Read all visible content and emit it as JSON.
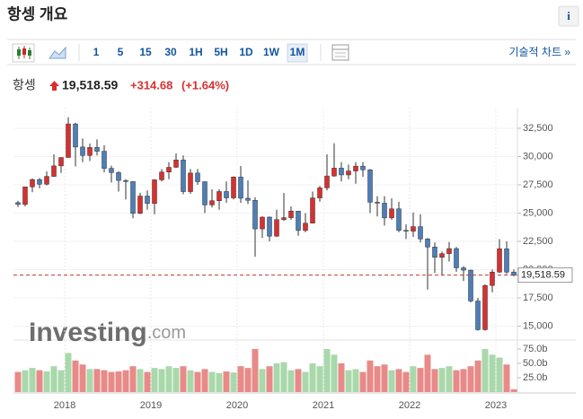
{
  "header": {
    "title": "항셍 개요",
    "info": "i",
    "tools": [
      "1",
      "5",
      "15",
      "30",
      "1H",
      "5H",
      "1D",
      "1W",
      "1M"
    ],
    "selected_tool": "1M",
    "tech_chart": "기술적 차트 »",
    "name": "항셍",
    "price": "19,518.59",
    "change": "+314.68",
    "change_pct": "(+1.64%)"
  },
  "chart_data": {
    "type": "candlestick",
    "categories": [
      null,
      null,
      null,
      null,
      null,
      null,
      null,
      "2018",
      null,
      null,
      null,
      null,
      null,
      null,
      null,
      null,
      null,
      null,
      null,
      "2019",
      null,
      null,
      null,
      null,
      null,
      null,
      null,
      null,
      null,
      null,
      null,
      "2020",
      null,
      null,
      null,
      null,
      null,
      null,
      null,
      null,
      null,
      null,
      null,
      "2021",
      null,
      null,
      null,
      null,
      null,
      null,
      null,
      null,
      null,
      null,
      null,
      "2022",
      null,
      null,
      null,
      null,
      null,
      null,
      null,
      null,
      null,
      null,
      null,
      "2023",
      null,
      null
    ],
    "open": [
      25925,
      25765,
      27323,
      27970,
      27554,
      28246,
      29177,
      29919,
      32887,
      30845,
      30093,
      30808,
      30469,
      28955,
      28583,
      27889,
      27789,
      24980,
      26507,
      25846,
      27942,
      28633,
      29051,
      29699,
      26901,
      28543,
      27778,
      25725,
      26092,
      26907,
      26346,
      28190,
      26313,
      26130,
      23603,
      24644,
      22961,
      24427,
      24595,
      25177,
      23459,
      24107,
      26341,
      27231,
      28284,
      28980,
      28378,
      28725,
      29152,
      28828,
      25961,
      25879,
      24576,
      25377,
      23475,
      23398,
      23802,
      22713,
      21997,
      21089,
      21415,
      21860,
      20157,
      19954,
      17223,
      14687,
      18597,
      19781,
      21842,
      19786
    ],
    "high": [
      26090,
      27325,
      28060,
      28100,
      28680,
      30200,
      29920,
      33484,
      33000,
      31600,
      31150,
      31520,
      31000,
      29200,
      28700,
      28000,
      27800,
      26800,
      27000,
      28000,
      28900,
      29500,
      30280,
      30100,
      28900,
      28900,
      27800,
      27100,
      27100,
      27800,
      28250,
      29170,
      27900,
      26400,
      24700,
      24700,
      25300,
      26780,
      25600,
      25200,
      25000,
      26900,
      27400,
      30200,
      31180,
      29500,
      29300,
      29500,
      29500,
      28900,
      26500,
      26500,
      26300,
      26000,
      24000,
      25050,
      24900,
      22800,
      22400,
      21600,
      22450,
      22000,
      20300,
      20000,
      17500,
      18700,
      20000,
      22700,
      22500,
      20000
    ],
    "low": [
      25550,
      25600,
      26850,
      27200,
      27450,
      28200,
      28550,
      29900,
      29130,
      29500,
      29600,
      30100,
      28600,
      27700,
      26900,
      26200,
      24540,
      24900,
      25300,
      24900,
      27800,
      28000,
      29000,
      26670,
      26700,
      27500,
      25000,
      25500,
      25300,
      25900,
      26200,
      25900,
      25800,
      21140,
      22800,
      22500,
      22900,
      24300,
      24400,
      23000,
      23300,
      24100,
      26000,
      27000,
      28200,
      27800,
      28000,
      27600,
      28200,
      25000,
      24700,
      23900,
      24400,
      23300,
      22700,
      22900,
      22400,
      18235,
      19700,
      19500,
      20700,
      19800,
      19000,
      17100,
      14600,
      14600,
      18000,
      19700,
      19600,
      19400
    ],
    "close": [
      25765,
      27323,
      27970,
      27554,
      28246,
      29177,
      29919,
      32887,
      30845,
      30093,
      30808,
      30469,
      28955,
      28583,
      27889,
      27789,
      24980,
      26507,
      25846,
      27942,
      28633,
      29051,
      29699,
      26901,
      28543,
      27778,
      25725,
      26092,
      26907,
      26346,
      28190,
      26313,
      26130,
      23603,
      24644,
      22961,
      24427,
      24595,
      25177,
      23459,
      24107,
      26341,
      27231,
      28284,
      28980,
      28378,
      28725,
      29152,
      28828,
      25961,
      25879,
      24576,
      25377,
      23475,
      23398,
      23802,
      22713,
      21997,
      21089,
      21415,
      21860,
      20157,
      19954,
      17223,
      14687,
      18597,
      19781,
      21842,
      19786,
      19518.59
    ],
    "volume": [
      35,
      38,
      42,
      38,
      36,
      45,
      38,
      68,
      55,
      48,
      40,
      40,
      38,
      35,
      36,
      38,
      45,
      40,
      35,
      42,
      40,
      45,
      42,
      45,
      38,
      35,
      40,
      35,
      33,
      36,
      34,
      45,
      42,
      75,
      40,
      45,
      50,
      52,
      38,
      40,
      35,
      50,
      45,
      75,
      65,
      50,
      38,
      40,
      35,
      55,
      45,
      48,
      38,
      40,
      35,
      45,
      42,
      65,
      40,
      42,
      45,
      38,
      40,
      45,
      55,
      75,
      65,
      60,
      48,
      5
    ],
    "ylim": [
      13850,
      34325
    ],
    "yticks": [
      {
        "value": 15000,
        "label": "15,000"
      },
      {
        "value": 17500,
        "label": "17,500"
      },
      {
        "value": 20000,
        "label": "20,000"
      },
      {
        "value": 22500,
        "label": "22,500"
      },
      {
        "value": 25000,
        "label": "25,000"
      },
      {
        "value": 27500,
        "label": "27,500"
      },
      {
        "value": 30000,
        "label": "30,000"
      },
      {
        "value": 32500,
        "label": "32,500"
      }
    ],
    "volume_ylim": [
      0,
      89
    ],
    "volume_ticks": [
      {
        "value": 25,
        "label": "25.0b"
      },
      {
        "value": 50,
        "label": "50.0b"
      },
      {
        "value": 75,
        "label": "75.0b"
      }
    ],
    "up_color": "#d8302f",
    "down_color": "#4d7fb8",
    "volume_up_color": "#a9d8aa",
    "volume_down_color": "#e88a88",
    "last_line_color": "#c0392b",
    "watermark": [
      "Investing",
      ".com"
    ],
    "grid": true
  }
}
